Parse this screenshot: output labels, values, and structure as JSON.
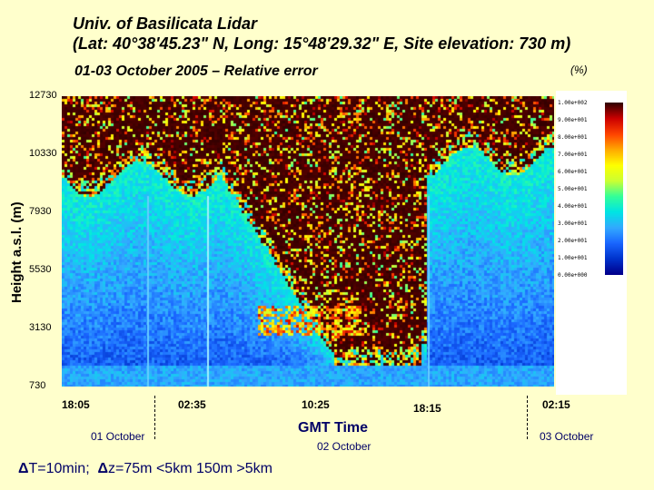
{
  "header": {
    "title_line1": "Univ. of Basilicata Lidar",
    "title_line2": "(Lat: 40°38'45.23\" N, Long: 15°48'29.32\" E, Site elevation: 730 m)",
    "subtitle": "01-03 October 2005 – Relative error",
    "unit": "(%)"
  },
  "axes": {
    "ylabel": "Height a.s.l. (m)",
    "xlabel": "GMT Time"
  },
  "dates": {
    "d1": "01 October",
    "d2": "02 October",
    "d3": "03 October"
  },
  "footer": {
    "dt_symbol": "Δ",
    "dt_text": "T=10min;",
    "dz_symbol": "Δ",
    "dz_text": "z=75m <5km 150m >5km"
  },
  "chart_data": {
    "type": "heatmap",
    "title": "01-03 October 2005 – Relative error",
    "xlabel": "GMT Time",
    "ylabel": "Height a.s.l. (m)",
    "y_ticks": [
      12730,
      10330,
      7930,
      5530,
      3130,
      730
    ],
    "ylim": [
      730,
      12730
    ],
    "x_ticks": [
      "18:05",
      "02:35",
      "10:25",
      "18:15",
      "02:15"
    ],
    "colorbar_unit": "(%)",
    "colorbar_ticks": [
      "1.00e+002",
      "9.00e+001",
      "8.00e+001",
      "7.00e+001",
      "6.00e+001",
      "5.00e+001",
      "4.00e+001",
      "3.00e+001",
      "2.00e+001",
      "1.00e+001",
      "0.00e+000"
    ],
    "colorbar_range": [
      0,
      100
    ],
    "colormap": [
      "#00008b",
      "#0033cc",
      "#1a66ff",
      "#33aaff",
      "#00e5e5",
      "#33ff99",
      "#ccff33",
      "#ffff00",
      "#ffaa00",
      "#ff4400",
      "#cc0000",
      "#330000"
    ]
  },
  "colors": {
    "background": "#ffffcc",
    "heatmap_cell_bg": "#1a0a00"
  }
}
